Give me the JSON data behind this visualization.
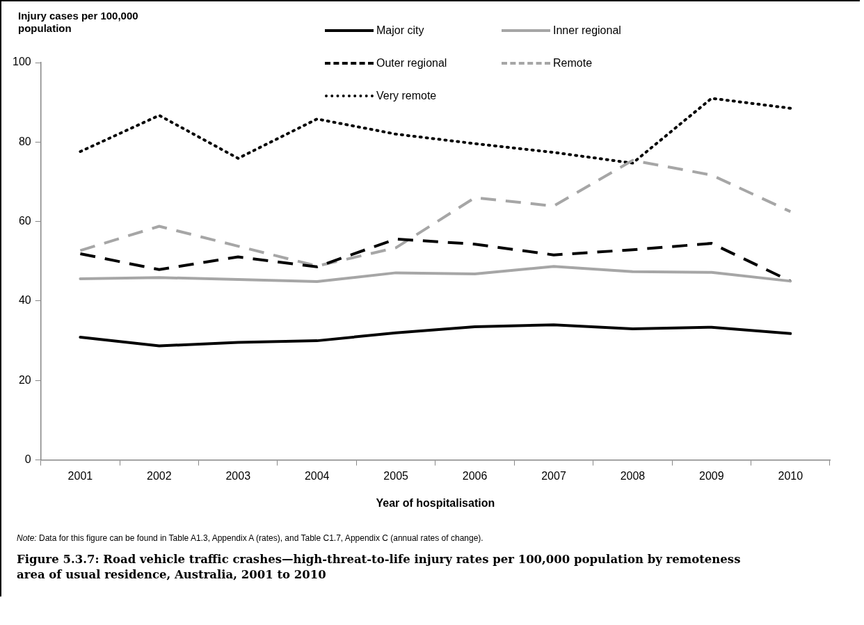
{
  "chart_data": {
    "type": "line",
    "title": "Figure 5.3.7: Road vehicle traffic crashes—high-threat-to-life injury rates per 100,000 population by remoteness area of usual residence, Australia, 2001 to 2010",
    "xlabel": "Year of hospitalisation",
    "ylabel": "Injury cases per 100,000 population",
    "categories": [
      "2001",
      "2002",
      "2003",
      "2004",
      "2005",
      "2006",
      "2007",
      "2008",
      "2009",
      "2010"
    ],
    "series": [
      {
        "name": "Major city",
        "color": "#000000",
        "line_style": "solid",
        "values": [
          30.9,
          28.7,
          29.6,
          30.0,
          32.0,
          33.5,
          34.0,
          33.0,
          33.4,
          31.8
        ]
      },
      {
        "name": "Inner regional",
        "color": "#a6a6a6",
        "line_style": "solid",
        "values": [
          45.6,
          45.9,
          45.4,
          44.9,
          47.1,
          46.8,
          48.7,
          47.4,
          47.2,
          45.0
        ]
      },
      {
        "name": "Outer regional",
        "color": "#000000",
        "line_style": "dashed",
        "values": [
          51.9,
          47.9,
          51.1,
          48.6,
          55.6,
          54.3,
          51.6,
          52.9,
          54.5,
          45.0
        ]
      },
      {
        "name": "Remote",
        "color": "#a6a6a6",
        "line_style": "dashed",
        "values": [
          52.7,
          58.8,
          53.8,
          48.8,
          53.4,
          66.0,
          63.9,
          75.4,
          71.7,
          62.5
        ]
      },
      {
        "name": "Very remote",
        "color": "#000000",
        "line_style": "dotted",
        "values": [
          77.6,
          86.7,
          75.9,
          85.8,
          82.0,
          79.6,
          77.4,
          74.7,
          91.0,
          88.5
        ]
      }
    ],
    "ylim": [
      0,
      100
    ],
    "yticks": [
      0,
      20,
      40,
      60,
      80,
      100
    ],
    "grid": false,
    "legend": "top right",
    "marker": "none",
    "annotations": [
      "Note: Data for this figure can be found in Table A1.3, Appendix A (rates), and Table C1.7, Appendix C (annual rates of change)."
    ]
  }
}
